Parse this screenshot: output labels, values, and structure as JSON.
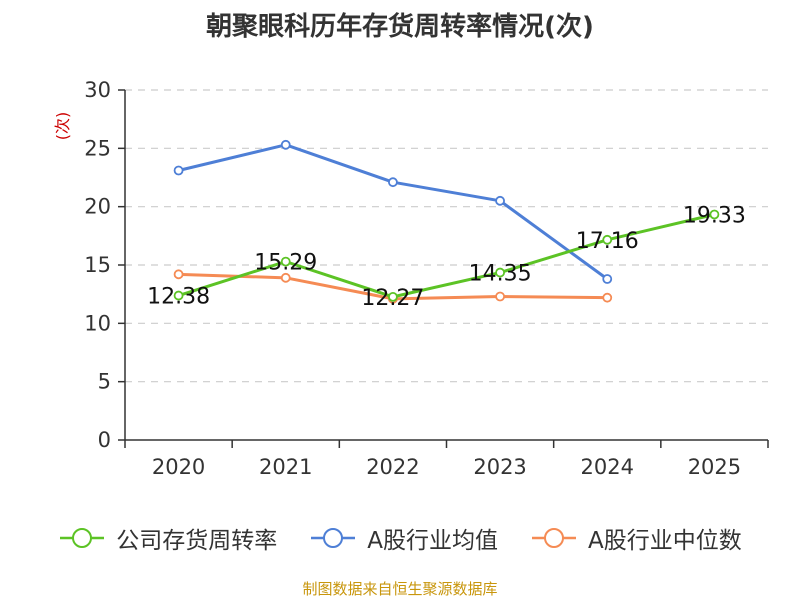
{
  "title": "朝聚眼科历年存货周转率情况(次)",
  "source_note": "制图数据来自恒生聚源数据库",
  "colors": {
    "company": "#5cc325",
    "industry_avg": "#4e7fd6",
    "industry_median": "#f58b54",
    "grid": "#cccccc",
    "axis": "#333333",
    "unit": "#cc0000"
  },
  "chart_data": {
    "type": "line",
    "categories": [
      "2020",
      "2021",
      "2022",
      "2023",
      "2024",
      "2025"
    ],
    "ylabel": "(次)",
    "ylim": [
      0,
      30
    ],
    "yticks": [
      "0",
      "5",
      "10",
      "15",
      "20",
      "25",
      "30"
    ],
    "grid": "horizontal-dashed",
    "legend": "bottom",
    "series": [
      {
        "name": "公司存货周转率",
        "values": [
          12.38,
          15.29,
          12.27,
          14.35,
          17.16,
          19.33
        ],
        "labels": [
          "12.38",
          "15.29",
          "12.27",
          "14.35",
          "17.16",
          "19.33"
        ],
        "color": "#5cc325"
      },
      {
        "name": "A股行业均值",
        "values": [
          23.1,
          25.3,
          22.1,
          20.5,
          13.8,
          null
        ],
        "color": "#4e7fd6"
      },
      {
        "name": "A股行业中位数",
        "values": [
          14.2,
          13.9,
          12.1,
          12.3,
          12.2,
          null
        ],
        "color": "#f58b54"
      }
    ]
  }
}
